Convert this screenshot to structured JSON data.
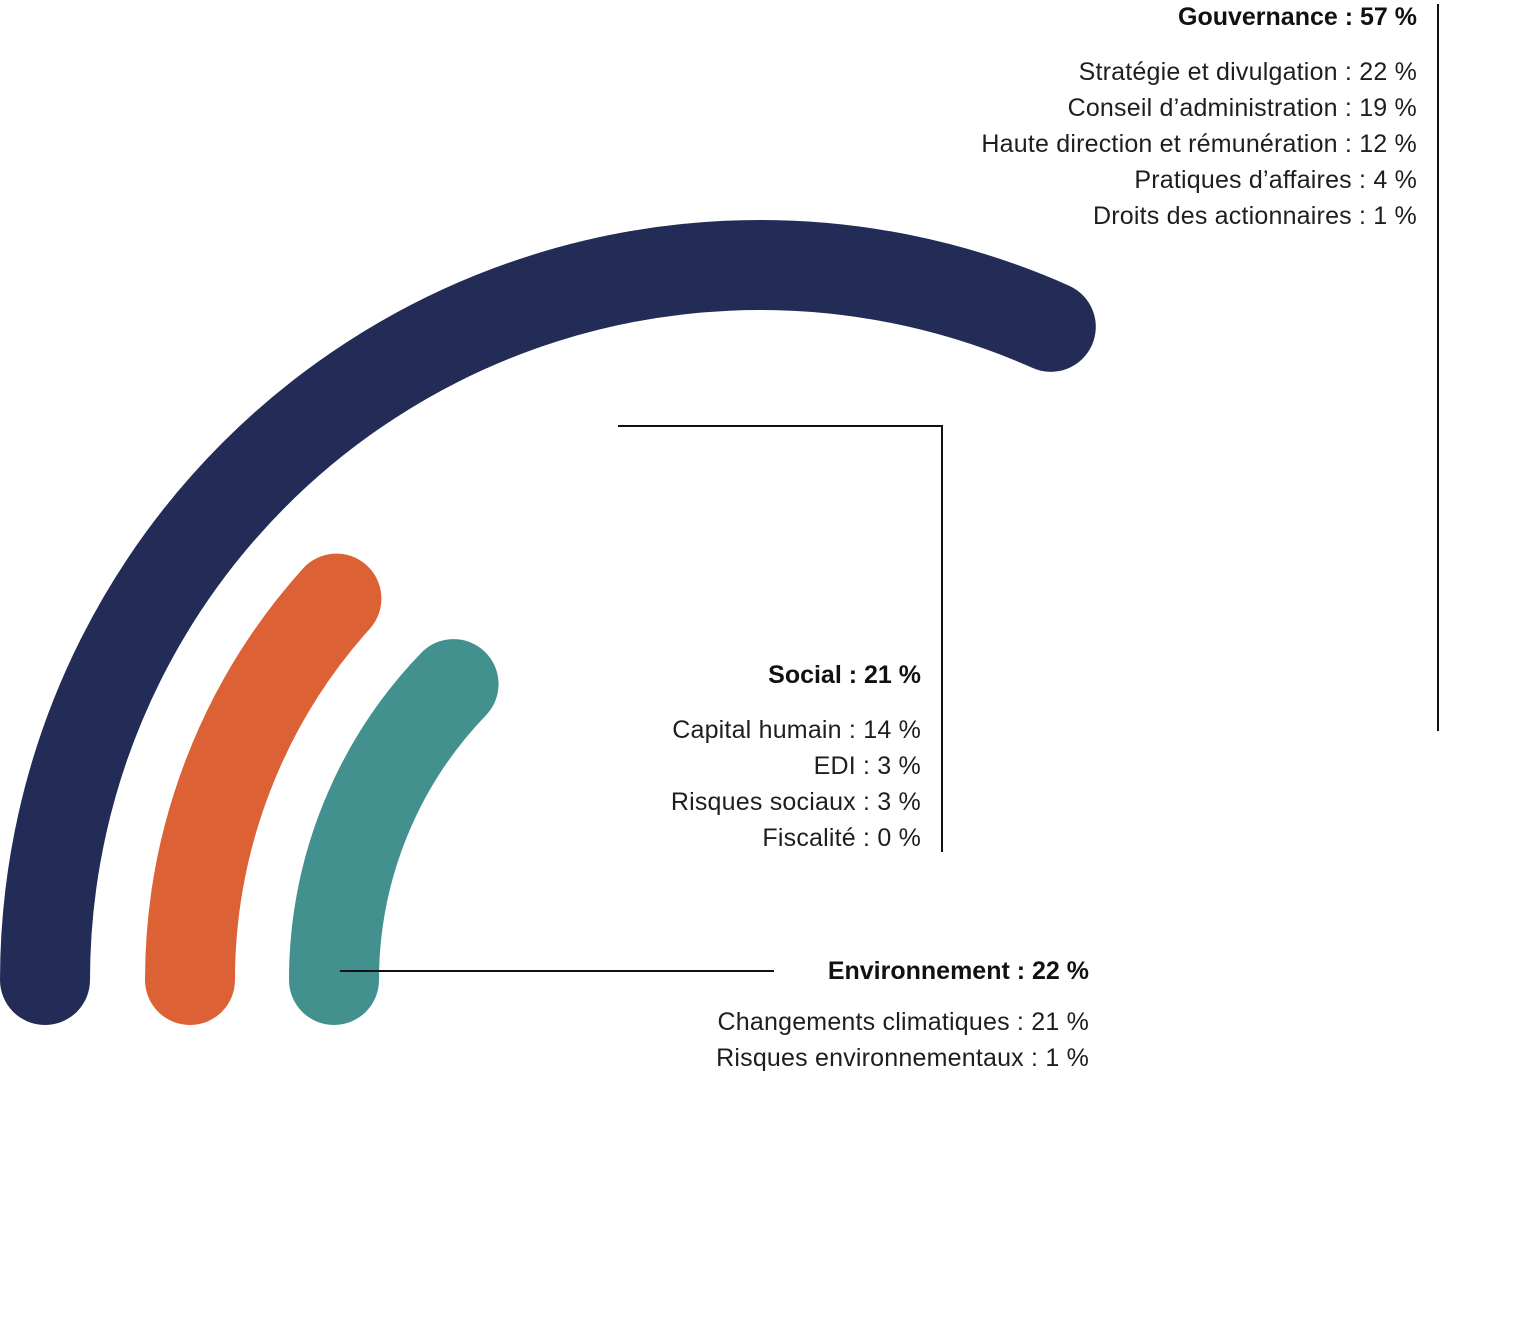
{
  "chart_data": {
    "type": "radial-bar",
    "max_percent": 100,
    "series": [
      {
        "key": "gov",
        "name": "Gouvernance",
        "value": 57,
        "heading": "Gouvernance : 57 %",
        "color": "#232c56",
        "items": [
          {
            "name": "Stratégie et divulgation",
            "value": 22,
            "label": "Stratégie et divulgation : 22 %"
          },
          {
            "name": "Conseil d’administration",
            "value": 19,
            "label": "Conseil d’administration : 19 %"
          },
          {
            "name": "Haute direction et rémunération",
            "value": 12,
            "label": "Haute direction et rémunération : 12 %"
          },
          {
            "name": "Pratiques d’affaires",
            "value": 4,
            "label": "Pratiques d’affaires : 4 %"
          },
          {
            "name": "Droits des actionnaires",
            "value": 1,
            "label": "Droits des actionnaires : 1 %"
          }
        ]
      },
      {
        "key": "soc",
        "name": "Social",
        "value": 21,
        "heading": "Social : 21 %",
        "color": "#dc6236",
        "items": [
          {
            "name": "Capital humain",
            "value": 14,
            "label": "Capital humain : 14 %"
          },
          {
            "name": "EDI",
            "value": 3,
            "label": "EDI : 3 %"
          },
          {
            "name": "Risques sociaux",
            "value": 3,
            "label": "Risques sociaux : 3 %"
          },
          {
            "name": "Fiscalité",
            "value": 0,
            "label": "Fiscalité : 0 %"
          }
        ]
      },
      {
        "key": "env",
        "name": "Environnement",
        "value": 22,
        "heading": "Environnement : 22 %",
        "color": "#42918f",
        "items": [
          {
            "name": "Changements climatiques",
            "value": 21,
            "label": "Changements climatiques : 21 %"
          },
          {
            "name": "Risques environnementaux",
            "value": 1,
            "label": "Risques environnementaux : 1 %"
          }
        ]
      }
    ],
    "leader_line_color": "#111111"
  }
}
